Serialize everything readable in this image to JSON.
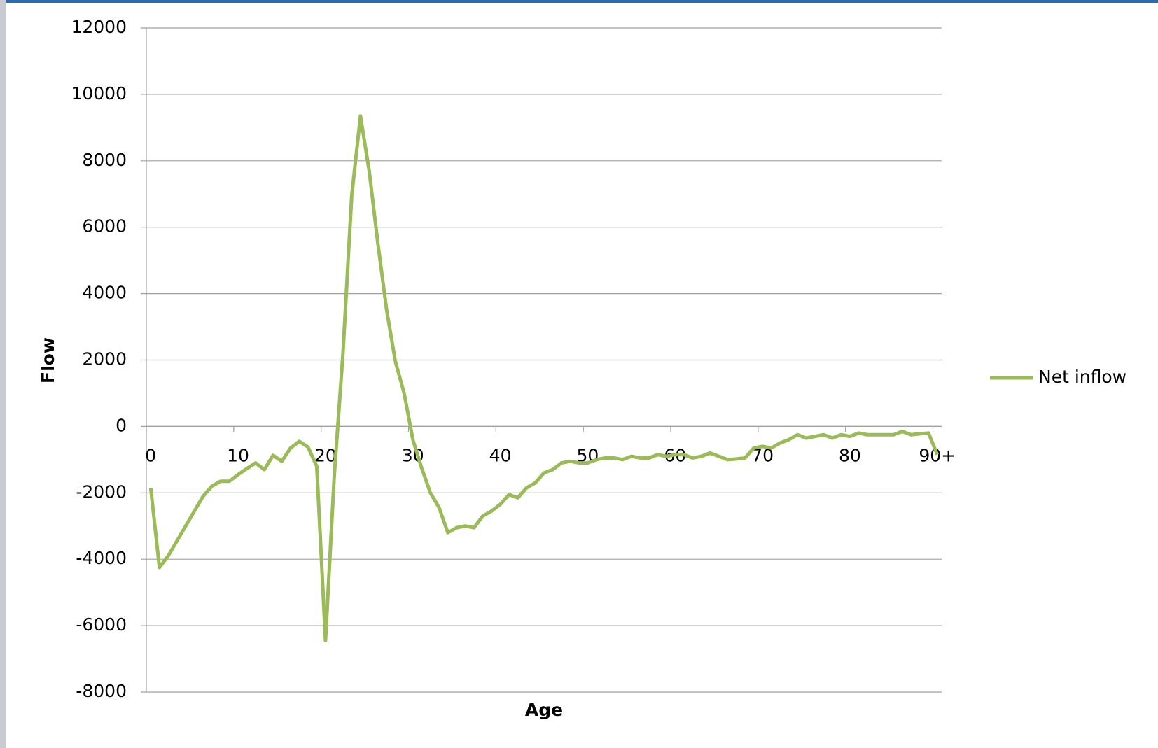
{
  "chart_data": {
    "type": "line",
    "x_label": "Age",
    "y_label": "Flow",
    "categories": [
      "0",
      null,
      null,
      null,
      null,
      null,
      null,
      null,
      null,
      null,
      "10",
      null,
      null,
      null,
      null,
      null,
      null,
      null,
      null,
      null,
      "20",
      null,
      null,
      null,
      null,
      null,
      null,
      null,
      null,
      null,
      "30",
      null,
      null,
      null,
      null,
      null,
      null,
      null,
      null,
      null,
      "40",
      null,
      null,
      null,
      null,
      null,
      null,
      null,
      null,
      null,
      "50",
      null,
      null,
      null,
      null,
      null,
      null,
      null,
      null,
      null,
      "60",
      null,
      null,
      null,
      null,
      null,
      null,
      null,
      null,
      null,
      "70",
      null,
      null,
      null,
      null,
      null,
      null,
      null,
      null,
      null,
      "80",
      null,
      null,
      null,
      null,
      null,
      null,
      null,
      null,
      null,
      "90+"
    ],
    "series": [
      {
        "name": "Net inflow",
        "color": "#9bbb59",
        "values": [
          -1850,
          -4250,
          -3900,
          -3450,
          -3000,
          -2550,
          -2100,
          -1800,
          -1650,
          -1650,
          -1450,
          -1270,
          -1100,
          -1300,
          -870,
          -1050,
          -650,
          -450,
          -620,
          -1200,
          -6450,
          -1500,
          2200,
          6950,
          9350,
          7700,
          5500,
          3500,
          1950,
          1000,
          -400,
          -1250,
          -2000,
          -2450,
          -3200,
          -3050,
          -3000,
          -3050,
          -2700,
          -2550,
          -2350,
          -2050,
          -2150,
          -1850,
          -1700,
          -1400,
          -1300,
          -1100,
          -1050,
          -1100,
          -1100,
          -1000,
          -950,
          -950,
          -1000,
          -900,
          -950,
          -950,
          -850,
          -900,
          -850,
          -850,
          -950,
          -900,
          -800,
          -900,
          -1000,
          -980,
          -950,
          -650,
          -600,
          -650,
          -500,
          -400,
          -250,
          -350,
          -300,
          -250,
          -350,
          -250,
          -300,
          -200,
          -250,
          -250,
          -250,
          -250,
          -150,
          -250,
          -220,
          -200,
          -850
        ]
      }
    ],
    "ylim": [
      -8000,
      12000
    ],
    "yticks": [
      -8000,
      -6000,
      -4000,
      -2000,
      0,
      2000,
      4000,
      6000,
      8000,
      10000,
      12000
    ],
    "grid": true,
    "legend": "right"
  }
}
